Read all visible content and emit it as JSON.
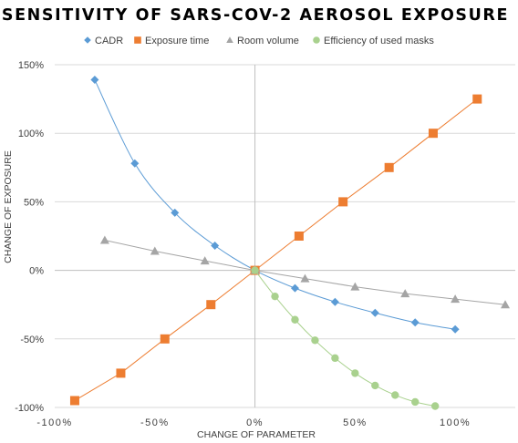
{
  "chart_data": {
    "type": "line",
    "title": "SENSITIVITY  OF SARS-COV-2  AEROSOL EXPOSURE",
    "xlabel": "CHANGE OF PARAMETER",
    "ylabel": "CHANGE OF EXPOSURE",
    "xlim": [
      -100,
      130
    ],
    "ylim": [
      -100,
      150
    ],
    "x_ticks": [
      -100,
      -50,
      0,
      50,
      100
    ],
    "x_tick_labels": [
      "-100%",
      "-50%",
      "0%",
      "50%",
      "100%"
    ],
    "y_ticks": [
      -100,
      -50,
      0,
      50,
      100,
      150
    ],
    "y_tick_labels": [
      "-100%",
      "-50%",
      "0%",
      "50%",
      "100%",
      "150%"
    ],
    "grid": "horizontal",
    "legend_position": "top",
    "series": [
      {
        "name": "CADR",
        "color": "#5b9bd5",
        "marker": "diamond",
        "x": [
          -80,
          -60,
          -40,
          -20,
          0,
          20,
          40,
          60,
          80,
          100
        ],
        "y": [
          139,
          78,
          42,
          18,
          0,
          -13,
          -23,
          -31,
          -38,
          -43
        ]
      },
      {
        "name": "Exposure time",
        "color": "#ed7d31",
        "marker": "square",
        "x": [
          -90,
          -67,
          -45,
          -22,
          0,
          22,
          44,
          67,
          89,
          111
        ],
        "y": [
          -95,
          -75,
          -50,
          -25,
          0,
          25,
          50,
          75,
          100,
          125
        ]
      },
      {
        "name": "Room volume",
        "color": "#a5a5a5",
        "marker": "triangle",
        "x": [
          -75,
          -50,
          -25,
          0,
          25,
          50,
          75,
          100,
          125
        ],
        "y": [
          22,
          14,
          7,
          0,
          -6,
          -12,
          -17,
          -21,
          -25
        ]
      },
      {
        "name": "Efficiency of used masks",
        "color": "#a9d18e",
        "marker": "circle",
        "x": [
          0,
          10,
          20,
          30,
          40,
          50,
          60,
          70,
          80,
          90
        ],
        "y": [
          0,
          -19,
          -36,
          -51,
          -64,
          -75,
          -84,
          -91,
          -96,
          -99
        ]
      }
    ]
  }
}
